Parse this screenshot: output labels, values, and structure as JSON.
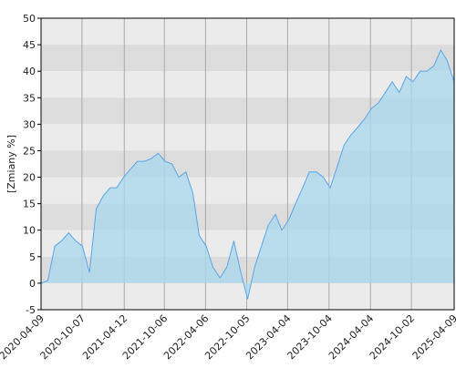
{
  "chart_data": {
    "type": "area",
    "y_label": "[Zmiany %]",
    "color": "#5aa5ea",
    "fill": "#a8d8ee",
    "x": [
      "2020-04-09",
      "2020-05-09",
      "2020-06-09",
      "2020-07-09",
      "2020-08-09",
      "2020-09-09",
      "2020-10-09",
      "2020-11-09",
      "2020-12-09",
      "2021-01-09",
      "2021-02-09",
      "2021-03-09",
      "2021-04-09",
      "2021-05-09",
      "2021-06-09",
      "2021-07-09",
      "2021-08-09",
      "2021-09-09",
      "2021-10-09",
      "2021-11-09",
      "2021-12-09",
      "2022-01-09",
      "2022-02-09",
      "2022-03-09",
      "2022-04-09",
      "2022-05-09",
      "2022-06-09",
      "2022-07-09",
      "2022-08-09",
      "2022-09-09",
      "2022-10-09",
      "2022-11-09",
      "2022-12-09",
      "2023-01-09",
      "2023-02-09",
      "2023-03-09",
      "2023-04-09",
      "2023-05-09",
      "2023-06-09",
      "2023-07-09",
      "2023-08-09",
      "2023-09-09",
      "2023-10-09",
      "2023-11-09",
      "2023-12-09",
      "2024-01-09",
      "2024-02-09",
      "2024-03-09",
      "2024-04-09",
      "2024-05-09",
      "2024-06-09",
      "2024-07-09",
      "2024-08-09",
      "2024-09-09",
      "2024-10-09",
      "2024-11-09",
      "2024-12-09",
      "2025-01-09",
      "2025-02-09",
      "2025-03-09",
      "2025-04-09"
    ],
    "values": [
      0,
      0.5,
      7,
      8,
      9.5,
      8,
      7,
      2,
      14,
      16.5,
      18,
      18,
      20,
      21.5,
      23,
      23,
      23.5,
      24.5,
      23,
      22.5,
      20,
      21,
      17,
      9,
      7,
      3,
      1,
      3,
      8,
      2,
      -3,
      3,
      7,
      11,
      13,
      10,
      12,
      15,
      18,
      21,
      21,
      20,
      18,
      22,
      26,
      28,
      29.5,
      31,
      33,
      34,
      36,
      38,
      36,
      39,
      38,
      40,
      40,
      41,
      44,
      42,
      38
    ],
    "xlim": [
      "2020-04-09",
      "2025-04-09"
    ],
    "xticks": [
      "2020-04-09",
      "2020-10-07",
      "2021-04-12",
      "2021-10-06",
      "2022-04-06",
      "2022-10-05",
      "2023-04-04",
      "2023-10-04",
      "2024-04-04",
      "2024-10-02",
      "2025-04-09"
    ],
    "ylim": [
      -5,
      50
    ],
    "yticks": [
      -5,
      0,
      5,
      10,
      15,
      20,
      25,
      30,
      35,
      40,
      45,
      50
    ],
    "grid": true
  }
}
